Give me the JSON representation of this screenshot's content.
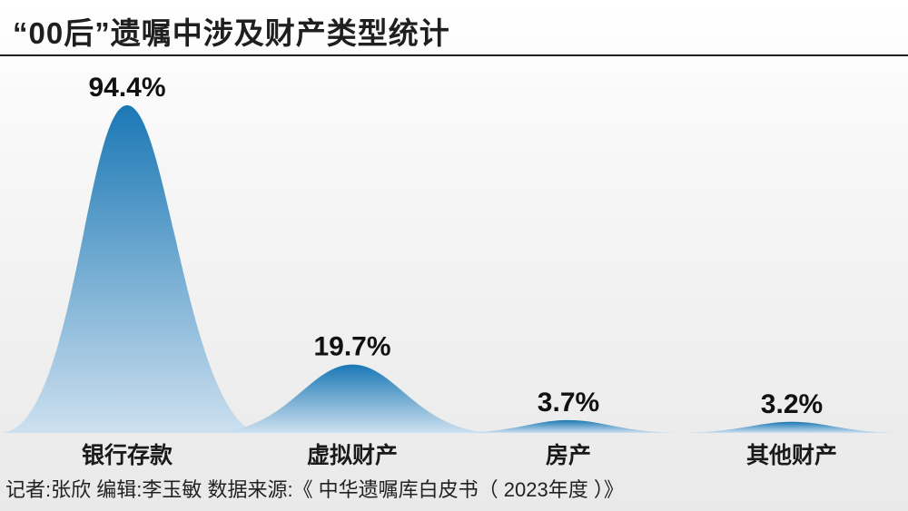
{
  "header": {
    "title": "“00后”遗嘱中涉及财产类型统计"
  },
  "chart_data": {
    "type": "area",
    "title": "“00后”遗嘱中涉及财产类型统计",
    "categories": [
      "银行存款",
      "虚拟财产",
      "房产",
      "其他财产"
    ],
    "values": [
      94.4,
      19.7,
      3.7,
      3.2
    ],
    "value_labels": [
      "94.4%",
      "19.7%",
      "3.7%",
      "3.2%"
    ],
    "unit": "%",
    "ylim": [
      0,
      100
    ],
    "grid": false,
    "legend": "none",
    "colors": {
      "peak_top": "#1b78b5",
      "peak_bottom": "#cde0ef"
    }
  },
  "footer": {
    "source": "记者:张欣   编辑:李玉敏   数据来源:《 中华遗嘱库白皮书（ 2023年度 ）》"
  }
}
